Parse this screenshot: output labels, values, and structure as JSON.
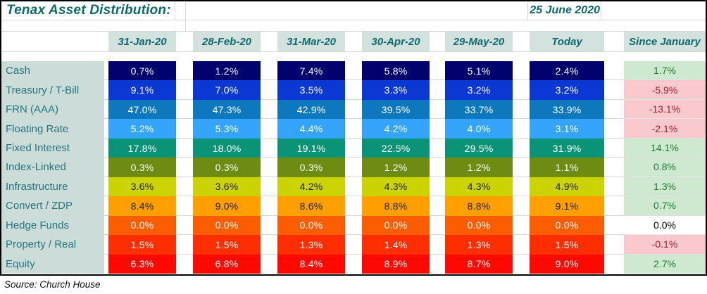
{
  "title": "Tenax Asset Distribution:",
  "date_label": "25 June 2020",
  "source": "Source: Church House",
  "columns": [
    "31-Jan-20",
    "28-Feb-20",
    "31-Mar-20",
    "30-Apr-20",
    "29-May-20",
    "Today",
    "Since January"
  ],
  "rows": [
    {
      "label": "Cash",
      "color": "#02026e",
      "text_color": "#ffffff",
      "values": [
        "0.7%",
        "1.2%",
        "7.4%",
        "5.8%",
        "5.1%",
        "2.4%"
      ],
      "since": {
        "value": "1.7%",
        "type": "positive"
      }
    },
    {
      "label": "Treasury / T-Bill",
      "color": "#0b38d2",
      "text_color": "#ffffff",
      "values": [
        "9.1%",
        "7.0%",
        "3.5%",
        "3.3%",
        "3.2%",
        "3.2%"
      ],
      "since": {
        "value": "-5.9%",
        "type": "negative"
      }
    },
    {
      "label": "FRN (AAA)",
      "color": "#0d78be",
      "text_color": "#ffffff",
      "values": [
        "47.0%",
        "47.3%",
        "42.9%",
        "39.5%",
        "33.7%",
        "33.9%"
      ],
      "since": {
        "value": "-13.1%",
        "type": "negative"
      }
    },
    {
      "label": "Floating Rate",
      "color": "#35a5fb",
      "text_color": "#ffffff",
      "values": [
        "5.2%",
        "5.3%",
        "4.4%",
        "4.2%",
        "4.0%",
        "3.1%"
      ],
      "since": {
        "value": "-2.1%",
        "type": "negative"
      }
    },
    {
      "label": "Fixed Interest",
      "color": "#0a9376",
      "text_color": "#ffffff",
      "values": [
        "17.8%",
        "18.0%",
        "19.1%",
        "22.5%",
        "29.5%",
        "31.9%"
      ],
      "since": {
        "value": "14.1%",
        "type": "positive"
      }
    },
    {
      "label": "Index-Linked",
      "color": "#6f8c12",
      "text_color": "#ffffff",
      "values": [
        "0.3%",
        "0.3%",
        "0.3%",
        "1.2%",
        "1.2%",
        "1.1%"
      ],
      "since": {
        "value": "0.8%",
        "type": "positive"
      }
    },
    {
      "label": "Infrastructure",
      "color": "#cbd303",
      "text_color": "#1f1f1f",
      "values": [
        "3.6%",
        "3.6%",
        "4.2%",
        "4.3%",
        "4.3%",
        "4.9%"
      ],
      "since": {
        "value": "1.3%",
        "type": "positive"
      }
    },
    {
      "label": "Convert / ZDP",
      "color": "#ffa000",
      "text_color": "#1f1f1f",
      "values": [
        "8.4%",
        "9.0%",
        "8.6%",
        "8.8%",
        "8.8%",
        "9.1%"
      ],
      "since": {
        "value": "0.7%",
        "type": "positive"
      }
    },
    {
      "label": "Hedge Funds",
      "color": "#fb5d00",
      "text_color": "#ffffff",
      "values": [
        "0.0%",
        "0.0%",
        "0.0%",
        "0.0%",
        "0.0%",
        "0.0%"
      ],
      "since": {
        "value": "0.0%",
        "type": "neutral"
      }
    },
    {
      "label": "Property / Real",
      "color": "#fe2e00",
      "text_color": "#ffffff",
      "values": [
        "1.5%",
        "1.5%",
        "1.3%",
        "1.4%",
        "1.3%",
        "1.5%"
      ],
      "since": {
        "value": "-0.1%",
        "type": "negative"
      }
    },
    {
      "label": "Equity",
      "color": "#ff0800",
      "text_color": "#ffffff",
      "values": [
        "6.3%",
        "6.8%",
        "8.4%",
        "8.9%",
        "8.7%",
        "9.0%"
      ],
      "since": {
        "value": "2.7%",
        "type": "positive"
      }
    }
  ],
  "since_styles": {
    "positive": {
      "bg": "#cfe9d1",
      "text": "#1e7b2e"
    },
    "negative": {
      "bg": "#f9c9cd",
      "text": "#a81e2e"
    },
    "neutral": {
      "bg": "#ffffff",
      "text": "#000000"
    }
  },
  "theme": {
    "teal_text": "#0e6a6d",
    "label_text": "#25767c",
    "label_bg": "#ccdcd8",
    "header_bg": "#d3e2de",
    "gridline": "#d9d9d9",
    "border": "#000000"
  },
  "chart_data": {
    "type": "table",
    "title": "Tenax Asset Distribution:",
    "as_of": "25 June 2020",
    "categories": [
      "31-Jan-20",
      "28-Feb-20",
      "31-Mar-20",
      "30-Apr-20",
      "29-May-20",
      "Today"
    ],
    "series": [
      {
        "name": "Cash",
        "values": [
          0.7,
          1.2,
          7.4,
          5.8,
          5.1,
          2.4
        ],
        "since_january": 1.7
      },
      {
        "name": "Treasury / T-Bill",
        "values": [
          9.1,
          7.0,
          3.5,
          3.3,
          3.2,
          3.2
        ],
        "since_january": -5.9
      },
      {
        "name": "FRN (AAA)",
        "values": [
          47.0,
          47.3,
          42.9,
          39.5,
          33.7,
          33.9
        ],
        "since_january": -13.1
      },
      {
        "name": "Floating Rate",
        "values": [
          5.2,
          5.3,
          4.4,
          4.2,
          4.0,
          3.1
        ],
        "since_january": -2.1
      },
      {
        "name": "Fixed Interest",
        "values": [
          17.8,
          18.0,
          19.1,
          22.5,
          29.5,
          31.9
        ],
        "since_january": 14.1
      },
      {
        "name": "Index-Linked",
        "values": [
          0.3,
          0.3,
          0.3,
          1.2,
          1.2,
          1.1
        ],
        "since_january": 0.8
      },
      {
        "name": "Infrastructure",
        "values": [
          3.6,
          3.6,
          4.2,
          4.3,
          4.3,
          4.9
        ],
        "since_january": 1.3
      },
      {
        "name": "Convert / ZDP",
        "values": [
          8.4,
          9.0,
          8.6,
          8.8,
          8.8,
          9.1
        ],
        "since_january": 0.7
      },
      {
        "name": "Hedge Funds",
        "values": [
          0.0,
          0.0,
          0.0,
          0.0,
          0.0,
          0.0
        ],
        "since_january": 0.0
      },
      {
        "name": "Property / Real",
        "values": [
          1.5,
          1.5,
          1.3,
          1.4,
          1.3,
          1.5
        ],
        "since_january": -0.1
      },
      {
        "name": "Equity",
        "values": [
          6.3,
          6.8,
          8.4,
          8.9,
          8.7,
          9.0
        ],
        "since_january": 2.7
      }
    ],
    "units": "percent",
    "source": "Church House"
  }
}
